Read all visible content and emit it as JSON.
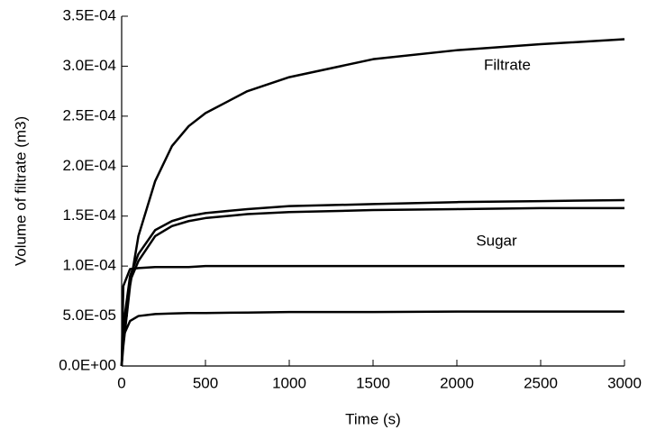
{
  "chart_data": {
    "type": "line",
    "xlabel": "Time (s)",
    "ylabel": "Volume of filtrate (m3)",
    "annotations": [
      {
        "text": "Filtrate"
      },
      {
        "text": "Sugar"
      }
    ],
    "x": [
      0,
      10,
      50,
      100,
      200,
      300,
      400,
      500,
      750,
      1000,
      1500,
      2000,
      2500,
      3000
    ],
    "series": [
      {
        "color": "#000000",
        "values": [
          0,
          2e-05,
          8e-05,
          0.00013,
          0.000185,
          0.00022,
          0.00024,
          0.000253,
          0.000275,
          0.000289,
          0.000307,
          0.000316,
          0.000322,
          0.000327
        ]
      },
      {
        "color": "#000000",
        "values": [
          0,
          4e-05,
          9e-05,
          0.000112,
          0.000136,
          0.000145,
          0.00015,
          0.000153,
          0.000157,
          0.00016,
          0.000162,
          0.000164,
          0.000165,
          0.000166
        ]
      },
      {
        "color": "#000000",
        "values": [
          0,
          3.5e-05,
          8.5e-05,
          0.000105,
          0.00013,
          0.00014,
          0.000145,
          0.000148,
          0.000152,
          0.000154,
          0.000156,
          0.000157,
          0.000158,
          0.000158
        ]
      },
      {
        "color": "#000000",
        "values": [
          0,
          8e-05,
          9.7e-05,
          9.8e-05,
          9.9e-05,
          9.9e-05,
          9.9e-05,
          0.0001,
          0.0001,
          0.0001,
          0.0001,
          0.0001,
          0.0001,
          0.0001
        ]
      },
      {
        "color": "#000000",
        "values": [
          0,
          3e-05,
          4.5e-05,
          5e-05,
          5.2e-05,
          5.25e-05,
          5.3e-05,
          5.3e-05,
          5.35e-05,
          5.4e-05,
          5.4e-05,
          5.45e-05,
          5.45e-05,
          5.45e-05
        ]
      }
    ],
    "xlim": [
      0,
      3000
    ],
    "xticks": [
      0,
      500,
      1000,
      1500,
      2000,
      2500,
      3000
    ],
    "ylim": [
      0,
      0.00035
    ],
    "yticks": [
      {
        "value": 0,
        "label": "0.0E+00"
      },
      {
        "value": 5e-05,
        "label": "5.0E-05"
      },
      {
        "value": 0.0001,
        "label": "1.0E-04"
      },
      {
        "value": 0.00015,
        "label": "1.5E-04"
      },
      {
        "value": 0.0002,
        "label": "2.0E-04"
      },
      {
        "value": 0.00025,
        "label": "2.5E-04"
      },
      {
        "value": 0.0003,
        "label": "3.0E-04"
      },
      {
        "value": 0.00035,
        "label": "3.5E-04"
      }
    ]
  }
}
